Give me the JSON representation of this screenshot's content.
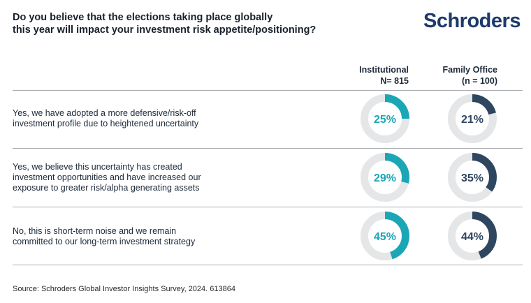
{
  "title": "Do you believe that the elections taking place globally this year will impact your investment risk appetite/positioning?",
  "title_lines": [
    "Do you believe that the elections taking place globally",
    "this year will impact your investment risk appetite/positioning?"
  ],
  "logo": "Schroders",
  "source": "Source: Schroders Global Investor Insights Survey, 2024. 613864",
  "chart_data": {
    "type": "donut",
    "columns": [
      {
        "name": "Institutional",
        "sample": "N= 815",
        "color": "#1ba6b6"
      },
      {
        "name": "Family Office",
        "sample": "(n = 100)",
        "color": "#2e4660"
      }
    ],
    "track_color": "#e5e6e8",
    "rows": [
      {
        "label_lines": [
          "Yes, we have adopted a more defensive/risk-off",
          "investment profile due to heightened uncertainty"
        ],
        "values": [
          25,
          21
        ]
      },
      {
        "label_lines": [
          "Yes, we believe this uncertainty has created",
          "investment opportunities and have increased our",
          "exposure to greater risk/alpha generating assets"
        ],
        "values": [
          29,
          35
        ]
      },
      {
        "label_lines": [
          "No, this is short-term noise and we remain",
          "committed to our long-term investment strategy"
        ],
        "values": [
          45,
          44
        ]
      }
    ],
    "value_labels": [
      [
        "25%",
        "21%"
      ],
      [
        "29%",
        "35%"
      ],
      [
        "45%",
        "44%"
      ]
    ]
  }
}
